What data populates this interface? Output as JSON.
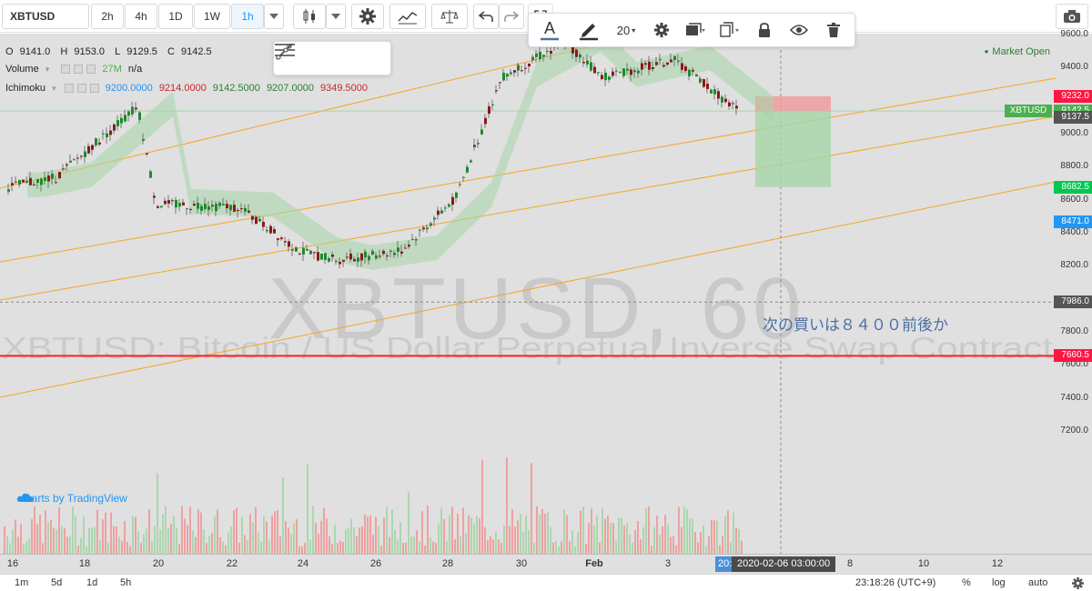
{
  "toolbar": {
    "symbol": "XBTUSD",
    "intervals": [
      "2h",
      "4h",
      "1D",
      "1W",
      "1h"
    ],
    "active_interval": "1h"
  },
  "drawing_toolbar": {
    "font_size": "20"
  },
  "legend": {
    "ohlc": {
      "o_label": "O",
      "o": "9141.0",
      "h_label": "H",
      "h": "9153.0",
      "l_label": "L",
      "l": "9129.5",
      "c_label": "C",
      "c": "9142.5"
    },
    "volume": {
      "label": "Volume",
      "value": "27M",
      "extra": "n/a"
    },
    "ichimoku": {
      "label": "Ichimoku",
      "values": [
        "9200.0000",
        "9214.0000",
        "9142.5000",
        "9207.0000",
        "9349.5000"
      ]
    }
  },
  "status": {
    "market": "Market Open"
  },
  "watermark": {
    "big": "XBTUSD, 60",
    "description": "XBTUSD: Bitcoin / US Dollar Perpetual Inverse Swap Contract"
  },
  "annotation": "次の買いは８４００前後か",
  "branding": "charts by TradingView",
  "price_axis": {
    "ticks": [
      "9600.0",
      "9400.0",
      "9000.0",
      "8800.0",
      "8600.0",
      "8400.0",
      "8200.0",
      "7800.0",
      "7600.0",
      "7400.0",
      "7200.0"
    ],
    "tags": {
      "symbol_label": "XBTUSD",
      "current": "9142.5",
      "stop": "9232.0",
      "entry": "9137.5",
      "target": "8682.5",
      "blue": "8471.0",
      "line_dashed": "7986.0",
      "line_red": "7660.5"
    }
  },
  "time_axis": {
    "labels": [
      "16",
      "18",
      "20",
      "22",
      "24",
      "26",
      "28",
      "30",
      "Feb",
      "3",
      "8",
      "10",
      "12"
    ],
    "cursor_prefix": "20:",
    "cursor": "2020-02-06 03:00:00"
  },
  "bottom_bar": {
    "ranges": [
      "1m",
      "5d",
      "1d",
      "5h"
    ],
    "clock": "23:18:26 (UTC+9)",
    "percent": "%",
    "log": "log",
    "auto": "auto"
  },
  "colors": {
    "up": "#4caf50",
    "down": "#e53935",
    "channel": "#f5a623",
    "red_line": "#ff1f1f",
    "cloud_green": "#a5d6a7",
    "cloud_red": "#ef9a9a"
  }
}
